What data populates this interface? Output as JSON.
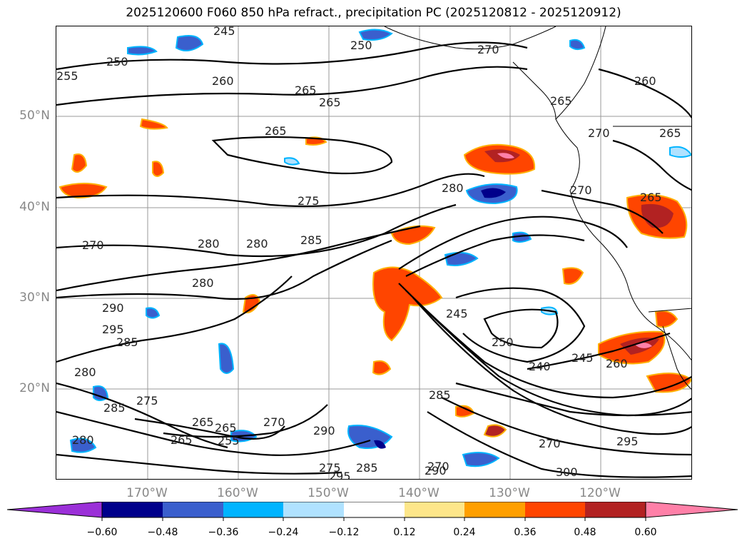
{
  "title": "2025120600 F060 850 hPa refract., precipitation PC (2025120812 - 2025120912)",
  "lat_labels": [
    "50°N",
    "40°N",
    "30°N",
    "20°N"
  ],
  "lon_labels": [
    "170°W",
    "160°W",
    "150°W",
    "140°W",
    "130°W",
    "120°W"
  ],
  "colorbar": {
    "ticks": [
      "−0.60",
      "−0.48",
      "−0.36",
      "−0.24",
      "−0.12",
      "0.12",
      "0.24",
      "0.36",
      "0.48",
      "0.60"
    ],
    "colors": [
      "#9b30d8",
      "#00008b",
      "#3a5fcd",
      "#00b4ff",
      "#b0e2ff",
      "#ffffff",
      "#fde68a",
      "#ff9f00",
      "#ff4500",
      "#b22222",
      "#ff80a8"
    ]
  },
  "contour_labels": [
    "245",
    "250",
    "255",
    "250",
    "260",
    "265",
    "265",
    "270",
    "265",
    "265",
    "260",
    "265",
    "265",
    "270",
    "270",
    "275",
    "280",
    "280",
    "285",
    "270",
    "280",
    "280",
    "290",
    "295",
    "285",
    "280",
    "285",
    "275",
    "270",
    "265",
    "265",
    "280",
    "290",
    "275",
    "285",
    "295",
    "290",
    "245",
    "250",
    "240",
    "245",
    "260",
    "285",
    "270",
    "295",
    "300",
    "265",
    "255",
    "270"
  ]
}
